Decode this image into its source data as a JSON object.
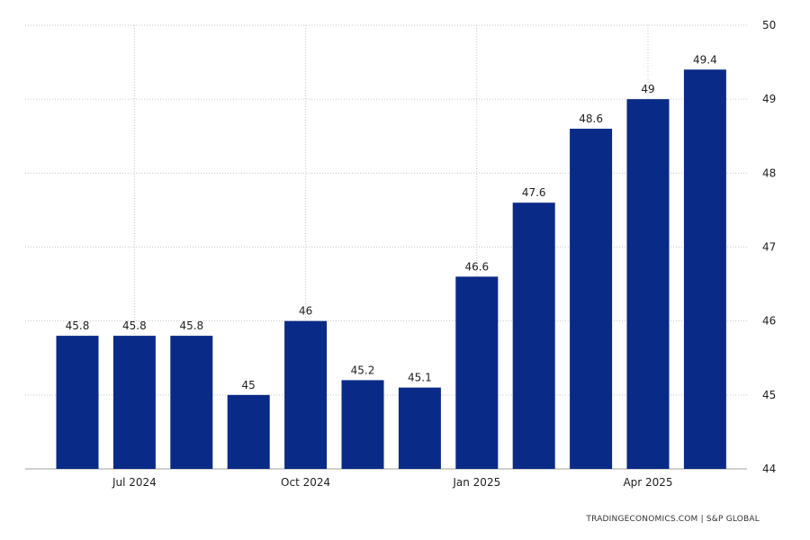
{
  "chart_data": {
    "type": "bar",
    "categories": [
      "Jun 2024",
      "Jul 2024",
      "Aug 2024",
      "Sep 2024",
      "Oct 2024",
      "Nov 2024",
      "Dec 2024",
      "Jan 2025",
      "Feb 2025",
      "Mar 2025",
      "Apr 2025",
      "May 2025"
    ],
    "values": [
      45.8,
      45.8,
      45.8,
      45.0,
      46.0,
      45.2,
      45.1,
      46.6,
      47.6,
      48.6,
      49.0,
      49.4
    ],
    "data_labels": [
      "45.8",
      "45.8",
      "45.8",
      "45",
      "46",
      "45.2",
      "45.1",
      "46.6",
      "47.6",
      "48.6",
      "49",
      "49.4"
    ],
    "x_ticks": [
      {
        "at": "Jul 2024",
        "label": "Jul 2024"
      },
      {
        "at": "Oct 2024",
        "label": "Oct 2024"
      },
      {
        "at": "Jan 2025",
        "label": "Jan 2025"
      },
      {
        "at": "Apr 2025",
        "label": "Apr 2025"
      }
    ],
    "y_ticks": [
      44,
      45,
      46,
      47,
      48,
      49,
      50
    ],
    "ylim": [
      44,
      50
    ],
    "y_axis_side": "right",
    "grid": true,
    "bar_color": "#0a2a87",
    "title": "",
    "xlabel": "",
    "ylabel": ""
  },
  "source": "TRADINGECONOMICS.COM  |  S&P GLOBAL"
}
